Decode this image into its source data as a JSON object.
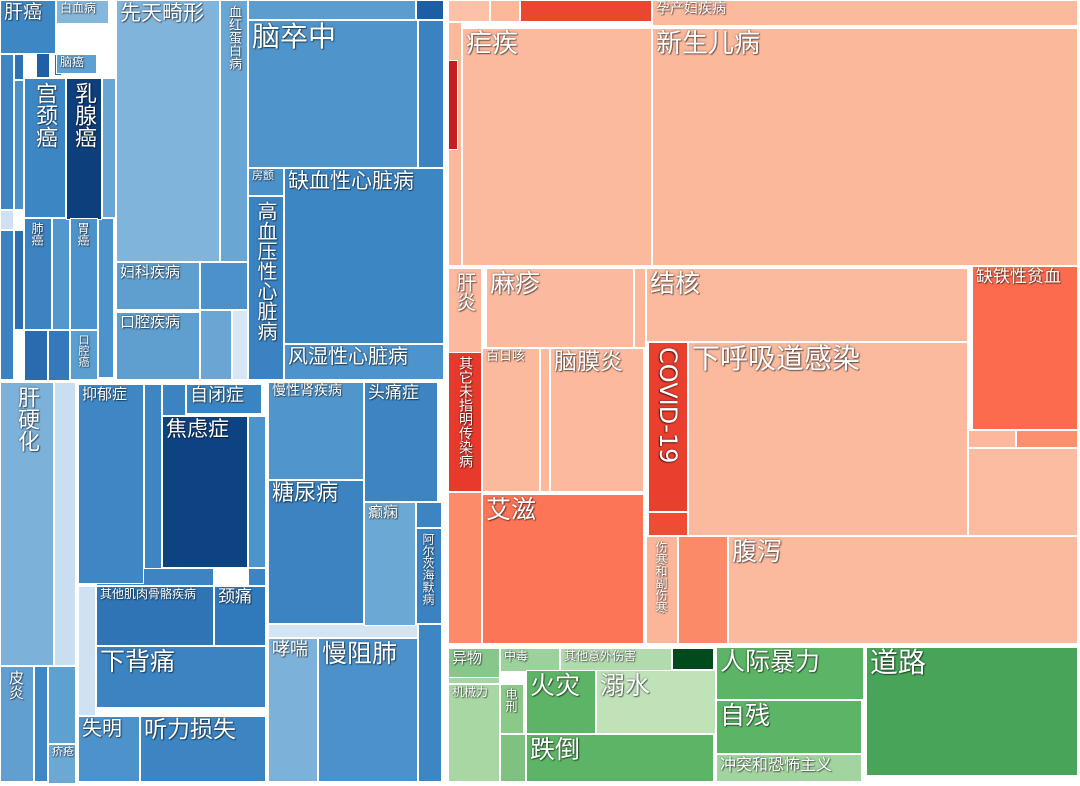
{
  "chart_data": {
    "type": "treemap",
    "title": "",
    "groups": [
      {
        "color": "#3d87c4",
        "items": [
          {
            "label": "肝癌",
            "value": 5.9,
            "color": "#3e87c5"
          },
          {
            "label": "白血病",
            "value": 2.4,
            "color": "#85b7dc"
          },
          {
            "label": "脑癌",
            "value": 1.3,
            "color": "#5ea0d1"
          },
          {
            "label": "宫颈癌",
            "value": 5.3,
            "color": "#3d86c4"
          },
          {
            "label": "乳腺癌",
            "value": 6.1,
            "color": "#0d3f7c"
          },
          {
            "label": "肺癌",
            "value": 2.1,
            "color": "#3c83c2"
          },
          {
            "label": "胃癌",
            "value": 2.0,
            "color": "#4d93cb"
          },
          {
            "label": "口腔癌",
            "value": 1.3,
            "color": "#5b9ed0"
          },
          {
            "label": "先天畸形",
            "value": 22.0,
            "color": "#80b4da"
          },
          {
            "label": "血红蛋白病",
            "value": 4.7,
            "color": "#6aa6d3"
          },
          {
            "label": "妇科疾病",
            "value": 4.2,
            "color": "#5e9fd0"
          },
          {
            "label": "口腔疾病",
            "value": 4.2,
            "color": "#5e9fd0"
          },
          {
            "label": "脑卒中",
            "value": 15.1,
            "color": "#4f95cc"
          },
          {
            "label": "房颤",
            "value": 0.8,
            "color": "#4a90c9"
          },
          {
            "label": "缺血性心脏病",
            "value": 14.9,
            "color": "#3d86c4"
          },
          {
            "label": "高血压性心脏病",
            "value": 6.0,
            "color": "#3a82c1"
          },
          {
            "label": "风湿性心脏病",
            "value": 5.8,
            "color": "#4e94cc"
          },
          {
            "label": "肝硬化",
            "value": 14.9,
            "color": "#7cb2d9"
          },
          {
            "label": "皮炎",
            "value": 4.8,
            "color": "#629fd1"
          },
          {
            "label": "疥疮",
            "value": 1.6,
            "color": "#6ca8d4"
          },
          {
            "label": "抑郁症",
            "value": 7.2,
            "color": "#3e87c4"
          },
          {
            "label": "自闭症",
            "value": 3.0,
            "color": "#3b84c2"
          },
          {
            "label": "焦虑症",
            "value": 9.3,
            "color": "#0e4382"
          },
          {
            "label": "其他肌肉骨骼疾病",
            "value": 5.1,
            "color": "#2f75b6"
          },
          {
            "label": "颈痛",
            "value": 3.0,
            "color": "#3079ba"
          },
          {
            "label": "下背痛",
            "value": 11.6,
            "color": "#3b83c1"
          },
          {
            "label": "失明",
            "value": 3.2,
            "color": "#4d92ca"
          },
          {
            "label": "听力损失",
            "value": 6.0,
            "color": "#3c84c2"
          },
          {
            "label": "慢性肾疾病",
            "value": 5.1,
            "color": "#5096cd"
          },
          {
            "label": "头痛症",
            "value": 6.8,
            "color": "#3c84c2"
          },
          {
            "label": "糖尿病",
            "value": 10.6,
            "color": "#3b83c1"
          },
          {
            "label": "癫痫",
            "value": 5.1,
            "color": "#6ba8d4"
          },
          {
            "label": "阿尔茨海默病",
            "value": 2.3,
            "color": "#3a82c1"
          },
          {
            "label": "哮喘",
            "value": 4.2,
            "color": "#7cb2d9"
          },
          {
            "label": "慢阻肺",
            "value": 9.2,
            "color": "#4c91ca"
          }
        ]
      },
      {
        "color": "#fbb598",
        "items": [
          {
            "label": "孕产妇疾病",
            "value": 2.7,
            "color": "#fbb99d"
          },
          {
            "label": "疟疾",
            "value": 23.0,
            "color": "#fbb99d"
          },
          {
            "label": "新生儿病",
            "value": 46.6,
            "color": "#fcb89b"
          },
          {
            "label": "肝炎",
            "value": 2.1,
            "color": "#fcb99e"
          },
          {
            "label": "麻疹",
            "value": 8.3,
            "color": "#fbbaa0"
          },
          {
            "label": "其它未指明传染病",
            "value": 4.3,
            "color": "#e83a2c"
          },
          {
            "label": "百日咳",
            "value": 3.6,
            "color": "#fbb99d"
          },
          {
            "label": "脑膜炎",
            "value": 6.6,
            "color": "#fcb99d"
          },
          {
            "label": "结核",
            "value": 11.8,
            "color": "#fbb99d"
          },
          {
            "label": "COVID-19",
            "value": 6.0,
            "color": "#e83f2e"
          },
          {
            "label": "下呼吸道感染",
            "value": 19.6,
            "color": "#fbb99d"
          },
          {
            "label": "缺铁性贫血",
            "value": 10.7,
            "color": "#fd6b4e"
          },
          {
            "label": "艾滋",
            "value": 11.9,
            "color": "#fc7557"
          },
          {
            "label": "伤寒和副伤寒",
            "value": 1.9,
            "color": "#fbb69a"
          },
          {
            "label": "腹泻",
            "value": 24.3,
            "color": "#fbb99d"
          }
        ]
      },
      {
        "color": "#62b46a",
        "items": [
          {
            "label": "异物",
            "value": 1.5,
            "color": "#88c78a"
          },
          {
            "label": "中毒",
            "value": 1.0,
            "color": "#9dd19c"
          },
          {
            "label": "其他意外伤害",
            "value": 2.0,
            "color": "#b1dbad"
          },
          {
            "label": "机械力",
            "value": 2.8,
            "color": "#a8d7a4"
          },
          {
            "label": "电刑",
            "value": 1.3,
            "color": "#8bc98b"
          },
          {
            "label": "火灾",
            "value": 3.1,
            "color": "#5db466"
          },
          {
            "label": "溺水",
            "value": 4.4,
            "color": "#bfe2b9"
          },
          {
            "label": "跌倒",
            "value": 7.0,
            "color": "#5db466"
          },
          {
            "label": "人际暴力",
            "value": 5.2,
            "color": "#5cb466"
          },
          {
            "label": "自残",
            "value": 5.2,
            "color": "#5cb466"
          },
          {
            "label": "冲突和恐怖主义",
            "value": 1.6,
            "color": "#a2d49f"
          },
          {
            "label": "道路",
            "value": 15.0,
            "color": "#47a459"
          }
        ]
      }
    ]
  }
}
